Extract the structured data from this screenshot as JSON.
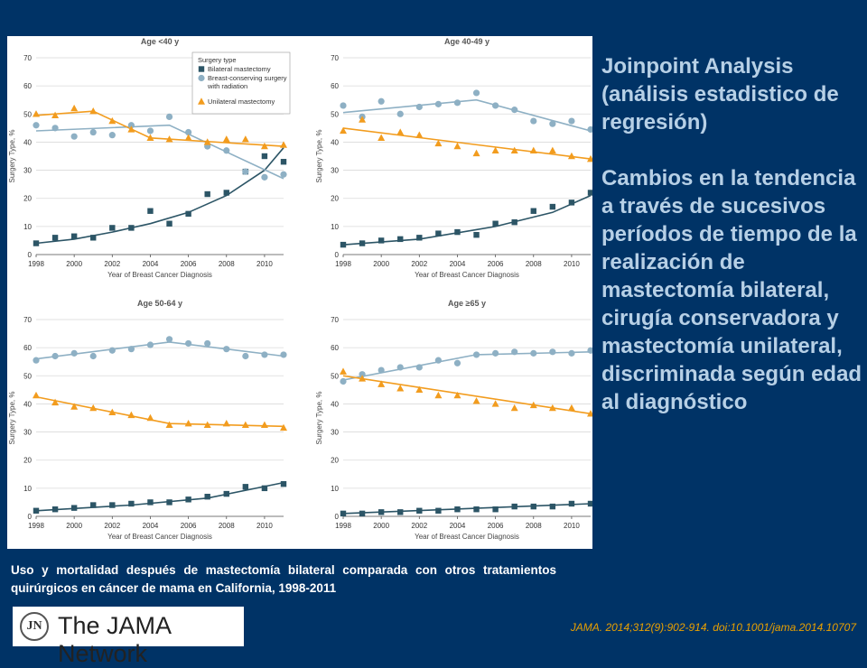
{
  "side": {
    "heading": "Joinpoint Analysis (análisis estadistico de regresión)",
    "body": "Cambios en la tendencia a través de sucesivos períodos de tiempo de la realización de mastectomía bilateral, cirugía conservadora y mastectomía unilateral, discriminada según edad al diagnóstico"
  },
  "caption": "Uso y mortalidad después de mastectomía bilateral comparada con otros tratamientos quirúrgicos en cáncer de mama en California, 1998-2011",
  "logo": {
    "badge": "JN",
    "text": "The JAMA Network"
  },
  "citation": "JAMA. 2014;312(9):902-914. doi:10.1001/jama.2014.10707",
  "colors": {
    "bilateral": "#2c5566",
    "bcs": "#8eb0c4",
    "unilateral": "#f29c1e"
  },
  "legend": {
    "title": "Surgery type",
    "items": [
      "Bilateral mastectomy",
      "Breast-conserving surgery with radiation",
      "Unilateral mastectomy"
    ]
  },
  "chart_data": [
    {
      "type": "scatter",
      "title": "Age <40 y",
      "xlabel": "Year of Breast Cancer Diagnosis",
      "ylabel": "Surgery Type, %",
      "xlim": [
        1998,
        2011
      ],
      "ylim": [
        0,
        70
      ],
      "x_ticks": [
        1998,
        2000,
        2002,
        2004,
        2006,
        2008,
        2010
      ],
      "y_ticks": [
        0,
        10,
        20,
        30,
        40,
        50,
        60,
        70
      ],
      "x": [
        1998,
        1999,
        2000,
        2001,
        2002,
        2003,
        2004,
        2005,
        2006,
        2007,
        2008,
        2009,
        2010,
        2011
      ],
      "series": [
        {
          "name": "Bilateral mastectomy",
          "values": [
            4,
            6,
            6.5,
            6,
            9.5,
            9.5,
            15.5,
            11,
            14.5,
            21.5,
            22,
            29.5,
            35,
            33
          ],
          "trend": [
            [
              1998,
              4
            ],
            [
              2000,
              5.5
            ],
            [
              2002,
              8
            ],
            [
              2004,
              11
            ],
            [
              2006,
              15
            ],
            [
              2008,
              21
            ],
            [
              2010,
              30
            ],
            [
              2011,
              38
            ]
          ]
        },
        {
          "name": "Breast-conserving surgery with radiation",
          "values": [
            46,
            45,
            42,
            43.5,
            42.5,
            46,
            44,
            49,
            43.5,
            38.5,
            37,
            29.5,
            27.5,
            28.5
          ],
          "trend": [
            [
              1998,
              44
            ],
            [
              2005,
              46
            ],
            [
              2011,
              27
            ]
          ]
        },
        {
          "name": "Unilateral mastectomy",
          "values": [
            50,
            49.5,
            52,
            51,
            47.5,
            44.5,
            41.5,
            41,
            41.5,
            40,
            41,
            41,
            38.5,
            39
          ],
          "trend": [
            [
              1998,
              49.5
            ],
            [
              2001,
              51
            ],
            [
              2004,
              41.5
            ],
            [
              2011,
              38.5
            ]
          ]
        }
      ]
    },
    {
      "type": "scatter",
      "title": "Age 40-49 y",
      "xlabel": "Year of Breast Cancer Diagnosis",
      "ylabel": "Surgery Type, %",
      "xlim": [
        1998,
        2011
      ],
      "ylim": [
        0,
        70
      ],
      "x_ticks": [
        1998,
        2000,
        2002,
        2004,
        2006,
        2008,
        2010
      ],
      "y_ticks": [
        0,
        10,
        20,
        30,
        40,
        50,
        60,
        70
      ],
      "x": [
        1998,
        1999,
        2000,
        2001,
        2002,
        2003,
        2004,
        2005,
        2006,
        2007,
        2008,
        2009,
        2010,
        2011
      ],
      "series": [
        {
          "name": "Bilateral mastectomy",
          "values": [
            3.5,
            4,
            5,
            5.5,
            6,
            7.5,
            8,
            7,
            11,
            11.5,
            15.5,
            17,
            18.5,
            22
          ],
          "trend": [
            [
              1998,
              3.5
            ],
            [
              2002,
              5.5
            ],
            [
              2006,
              10
            ],
            [
              2009,
              15
            ],
            [
              2011,
              21
            ]
          ]
        },
        {
          "name": "Breast-conserving surgery with radiation",
          "values": [
            53,
            49,
            54.5,
            50,
            52.5,
            53.5,
            54,
            57.5,
            53,
            51.5,
            47.5,
            46.5,
            47.5,
            44.5
          ],
          "trend": [
            [
              1998,
              50.5
            ],
            [
              2005,
              55
            ],
            [
              2011,
              44
            ]
          ]
        },
        {
          "name": "Unilateral mastectomy",
          "values": [
            44,
            48,
            41.5,
            43.5,
            42.5,
            39.5,
            38.5,
            36,
            37,
            37,
            37,
            37,
            35,
            34
          ],
          "trend": [
            [
              1998,
              45
            ],
            [
              2011,
              34
            ]
          ]
        }
      ]
    },
    {
      "type": "scatter",
      "title": "Age 50-64 y",
      "xlabel": "Year of Breast Cancer Diagnosis",
      "ylabel": "Surgery Type, %",
      "xlim": [
        1998,
        2011
      ],
      "ylim": [
        0,
        70
      ],
      "x_ticks": [
        1998,
        2000,
        2002,
        2004,
        2006,
        2008,
        2010
      ],
      "y_ticks": [
        0,
        10,
        20,
        30,
        40,
        50,
        60,
        70
      ],
      "x": [
        1998,
        1999,
        2000,
        2001,
        2002,
        2003,
        2004,
        2005,
        2006,
        2007,
        2008,
        2009,
        2010,
        2011
      ],
      "series": [
        {
          "name": "Bilateral mastectomy",
          "values": [
            2,
            2.5,
            3,
            4,
            4,
            4.5,
            5,
            5,
            6,
            7,
            8,
            10.5,
            10,
            11.5
          ],
          "trend": [
            [
              1998,
              2
            ],
            [
              2003,
              4
            ],
            [
              2007,
              6.5
            ],
            [
              2011,
              12
            ]
          ]
        },
        {
          "name": "Breast-conserving surgery with radiation",
          "values": [
            55.5,
            57,
            58,
            57,
            59,
            59.5,
            61,
            63,
            61.5,
            61.5,
            59.5,
            57,
            57.5,
            57.5
          ],
          "trend": [
            [
              1998,
              56
            ],
            [
              2005,
              62
            ],
            [
              2011,
              57
            ]
          ]
        },
        {
          "name": "Unilateral mastectomy",
          "values": [
            43,
            40.5,
            39,
            38.5,
            37,
            36,
            35,
            32.5,
            33,
            32.5,
            33,
            32.5,
            32.5,
            31.5
          ],
          "trend": [
            [
              1998,
              42.5
            ],
            [
              2005,
              33
            ],
            [
              2011,
              32
            ]
          ]
        }
      ]
    },
    {
      "type": "scatter",
      "title": "Age ≥65 y",
      "xlabel": "Year of Breast Cancer Diagnosis",
      "ylabel": "Surgery Type, %",
      "xlim": [
        1998,
        2011
      ],
      "ylim": [
        0,
        70
      ],
      "x_ticks": [
        1998,
        2000,
        2002,
        2004,
        2006,
        2008,
        2010
      ],
      "y_ticks": [
        0,
        10,
        20,
        30,
        40,
        50,
        60,
        70
      ],
      "x": [
        1998,
        1999,
        2000,
        2001,
        2002,
        2003,
        2004,
        2005,
        2006,
        2007,
        2008,
        2009,
        2010,
        2011
      ],
      "series": [
        {
          "name": "Bilateral mastectomy",
          "values": [
            1,
            1,
            1.5,
            1.5,
            2,
            2,
            2.5,
            2.5,
            2.5,
            3.5,
            3.5,
            3.5,
            4.5,
            4.5
          ],
          "trend": [
            [
              1998,
              1
            ],
            [
              2011,
              4.5
            ]
          ]
        },
        {
          "name": "Breast-conserving surgery with radiation",
          "values": [
            48,
            50.5,
            52,
            53,
            53,
            55.5,
            54.5,
            57.5,
            58,
            58.5,
            58,
            58.5,
            58,
            59
          ],
          "trend": [
            [
              1998,
              48.5
            ],
            [
              2005,
              57.5
            ],
            [
              2011,
              58.5
            ]
          ]
        },
        {
          "name": "Unilateral mastectomy",
          "values": [
            51.5,
            49,
            47,
            45.5,
            45,
            43,
            43,
            41,
            40,
            38.5,
            39.5,
            38.5,
            38.5,
            36.5
          ],
          "trend": [
            [
              1998,
              50
            ],
            [
              2011,
              36.5
            ]
          ]
        }
      ]
    }
  ]
}
